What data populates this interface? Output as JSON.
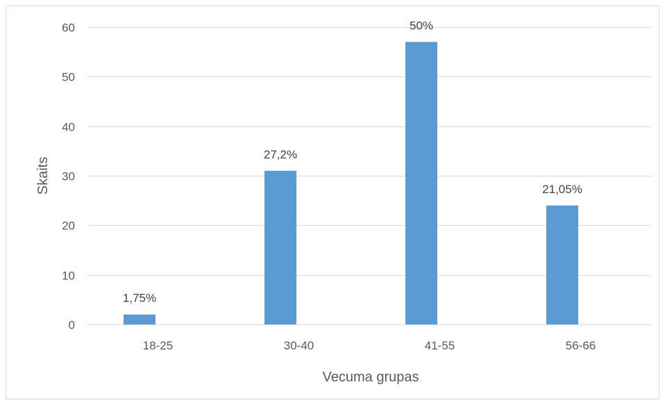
{
  "chart_data": {
    "type": "bar",
    "title": "",
    "xlabel": "Vecuma grupas",
    "ylabel": "Skaits",
    "categories": [
      "18-25",
      "30-40",
      "41-55",
      "56-66"
    ],
    "values": [
      2,
      31,
      57,
      24
    ],
    "data_labels": [
      "1,75%",
      "27,2%",
      "50%",
      "21,05%"
    ],
    "yticks": [
      0,
      10,
      20,
      30,
      40,
      50,
      60
    ],
    "ylim": [
      0,
      60
    ],
    "grid": true,
    "legend": "none",
    "colors": {
      "bar": "#5B9BD5",
      "grid": "#D9D9D9",
      "border": "#D9D9D9"
    }
  }
}
